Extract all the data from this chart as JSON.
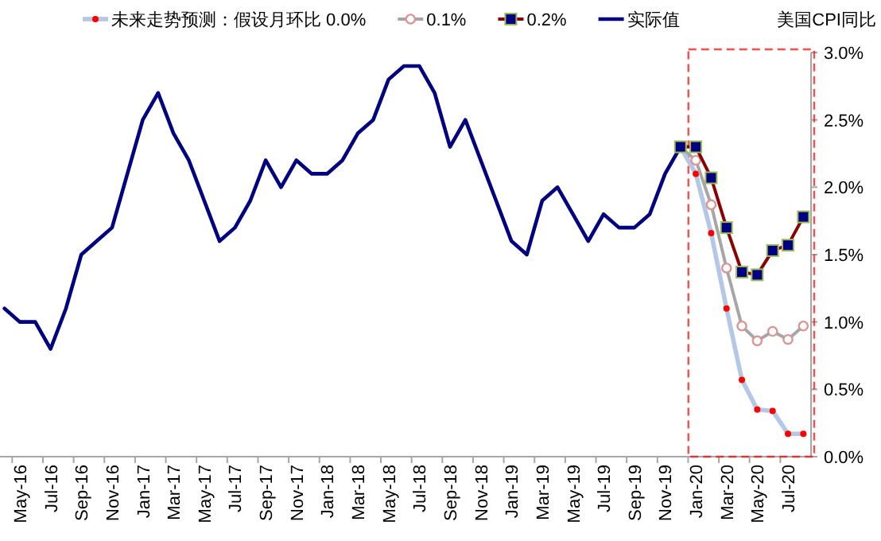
{
  "chart_data": {
    "type": "line",
    "ylabel": "美国CPI同比",
    "categories": [
      null,
      "May-16",
      null,
      "Jul-16",
      null,
      "Sep-16",
      null,
      "Nov-16",
      null,
      "Jan-17",
      null,
      "Mar-17",
      null,
      "May-17",
      null,
      "Jul-17",
      null,
      "Sep-17",
      null,
      "Nov-17",
      null,
      "Jan-18",
      null,
      "Mar-18",
      null,
      "May-18",
      null,
      "Jul-18",
      null,
      "Sep-18",
      null,
      "Nov-18",
      null,
      "Jan-19",
      null,
      "Mar-19",
      null,
      "May-19",
      null,
      "Jul-19",
      null,
      "Sep-19",
      null,
      "Nov-19",
      null,
      "Jan-20",
      null,
      "Mar-20",
      null,
      "May-20",
      null,
      "Jul-20",
      null
    ],
    "series": [
      {
        "name": "未来走势预测：假设月环比 0.0%",
        "color": "#b4c7e7",
        "marker": "circle",
        "values": [
          null,
          null,
          null,
          null,
          null,
          null,
          null,
          null,
          null,
          null,
          null,
          null,
          null,
          null,
          null,
          null,
          null,
          null,
          null,
          null,
          null,
          null,
          null,
          null,
          null,
          null,
          null,
          null,
          null,
          null,
          null,
          null,
          null,
          null,
          null,
          null,
          null,
          null,
          null,
          null,
          null,
          null,
          null,
          null,
          2.3,
          2.1,
          1.66,
          1.1,
          0.57,
          0.35,
          0.34,
          0.17,
          0.17
        ]
      },
      {
        "name": "0.1%",
        "color": "#a6a6a6",
        "marker": "circle",
        "values": [
          null,
          null,
          null,
          null,
          null,
          null,
          null,
          null,
          null,
          null,
          null,
          null,
          null,
          null,
          null,
          null,
          null,
          null,
          null,
          null,
          null,
          null,
          null,
          null,
          null,
          null,
          null,
          null,
          null,
          null,
          null,
          null,
          null,
          null,
          null,
          null,
          null,
          null,
          null,
          null,
          null,
          null,
          null,
          null,
          2.3,
          2.2,
          1.87,
          1.4,
          0.97,
          0.86,
          0.93,
          0.87,
          0.97
        ]
      },
      {
        "name": "0.2%",
        "color": "#8b0000",
        "marker": "square",
        "values": [
          null,
          null,
          null,
          null,
          null,
          null,
          null,
          null,
          null,
          null,
          null,
          null,
          null,
          null,
          null,
          null,
          null,
          null,
          null,
          null,
          null,
          null,
          null,
          null,
          null,
          null,
          null,
          null,
          null,
          null,
          null,
          null,
          null,
          null,
          null,
          null,
          null,
          null,
          null,
          null,
          null,
          null,
          null,
          null,
          2.3,
          2.3,
          2.07,
          1.7,
          1.37,
          1.35,
          1.53,
          1.57,
          1.78
        ]
      },
      {
        "name": "实际值",
        "color": "#000080",
        "marker": "none",
        "values": [
          1.1,
          1.0,
          1.0,
          0.8,
          1.1,
          1.5,
          1.6,
          1.7,
          2.1,
          2.5,
          2.7,
          2.4,
          2.2,
          1.9,
          1.6,
          1.7,
          1.9,
          2.2,
          2.0,
          2.2,
          2.1,
          2.1,
          2.2,
          2.4,
          2.5,
          2.8,
          2.9,
          2.9,
          2.7,
          2.3,
          2.5,
          2.2,
          1.9,
          1.6,
          1.5,
          1.9,
          2.0,
          1.8,
          1.6,
          1.8,
          1.7,
          1.7,
          1.8,
          2.1,
          2.3,
          null,
          null,
          null,
          null,
          null,
          null,
          null,
          null
        ]
      }
    ],
    "ylim": [
      0,
      3
    ],
    "yticks": [
      {
        "value": 0,
        "label": "0.0%"
      },
      {
        "value": 0.5,
        "label": "0.5%"
      },
      {
        "value": 1,
        "label": "1.0%"
      },
      {
        "value": 1.5,
        "label": "1.5%"
      },
      {
        "value": 2,
        "label": "2.0%"
      },
      {
        "value": 2.5,
        "label": "2.5%"
      },
      {
        "value": 3,
        "label": "3.0%"
      }
    ],
    "grid": false,
    "legend": "top"
  }
}
